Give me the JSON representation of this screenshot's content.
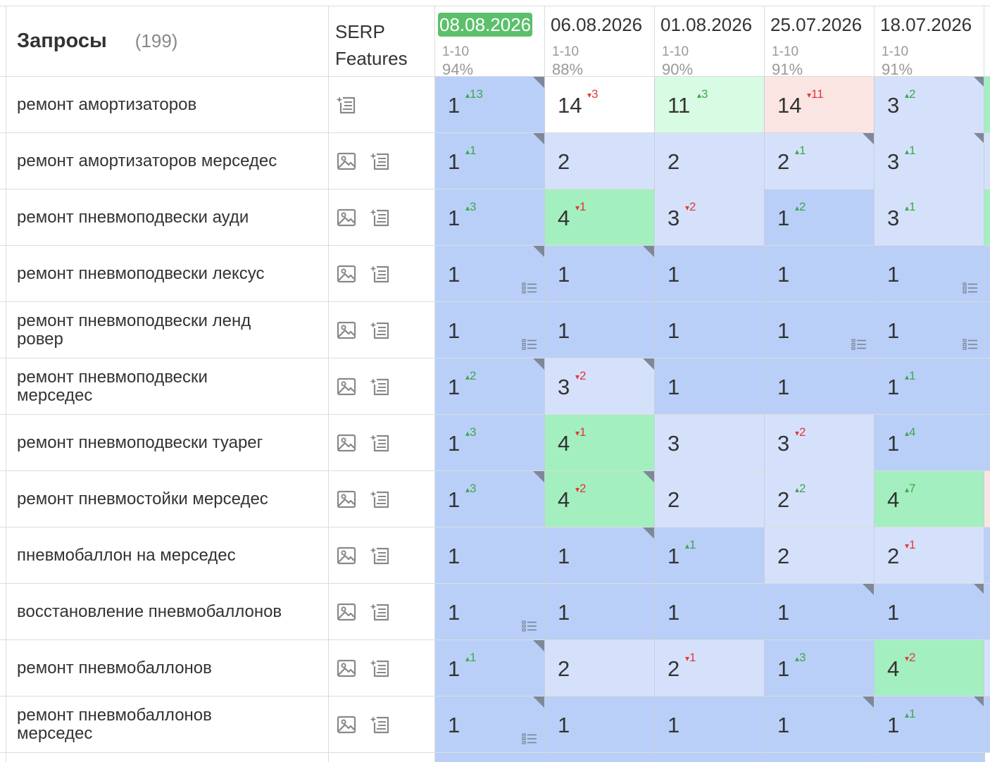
{
  "header": {
    "queries_title": "Запросы",
    "queries_count": "(199)",
    "serp_line1": "SERP",
    "serp_line2": "Features"
  },
  "colors": {
    "top1": "#b9cff8",
    "top3": "#d5e1fb",
    "top10": "#a3efbf",
    "improved_bg": "#d8fbe3",
    "dropped_bg": "#fbe5e3",
    "neutral": "#ffffff",
    "up": "#3fa84b",
    "down": "#e03a3a",
    "current_date_bg": "#5cc06b"
  },
  "dates": [
    {
      "date": "08.08.2026",
      "range": "1-10",
      "pct": "94%",
      "current": true
    },
    {
      "date": "06.08.2026",
      "range": "1-10",
      "pct": "88%",
      "current": false
    },
    {
      "date": "01.08.2026",
      "range": "1-10",
      "pct": "90%",
      "current": false
    },
    {
      "date": "25.07.2026",
      "range": "1-10",
      "pct": "91%",
      "current": false
    },
    {
      "date": "18.07.2026",
      "range": "1-10",
      "pct": "91%",
      "current": false
    }
  ],
  "right_edge": [
    "#a3efbf",
    "#d5e1fb",
    "#a3efbf",
    "#b9cff8",
    "#b9cff8",
    "#b9cff8",
    "#b9cff8",
    "#fbe5e3",
    "#b9cff8",
    "#b9cff8",
    "#d5e1fb",
    "#b9cff8"
  ],
  "rows": [
    {
      "query": "ремонт амортизаторов",
      "serp": [
        "snippet-icon"
      ],
      "cells": [
        {
          "pos": "1",
          "chg": "13",
          "dir": "up",
          "bg": "top1",
          "corner": true
        },
        {
          "pos": "14",
          "chg": "3",
          "dir": "down",
          "bg": "neutral"
        },
        {
          "pos": "11",
          "chg": "3",
          "dir": "up",
          "bg": "improved_bg"
        },
        {
          "pos": "14",
          "chg": "11",
          "dir": "down",
          "bg": "dropped_bg"
        },
        {
          "pos": "3",
          "chg": "2",
          "dir": "up",
          "bg": "top3",
          "corner": true
        }
      ]
    },
    {
      "query": "ремонт амортизаторов мерседес",
      "serp": [
        "image-icon",
        "snippet-icon"
      ],
      "cells": [
        {
          "pos": "1",
          "chg": "1",
          "dir": "up",
          "bg": "top1",
          "corner": true
        },
        {
          "pos": "2",
          "bg": "top3"
        },
        {
          "pos": "2",
          "bg": "top3"
        },
        {
          "pos": "2",
          "chg": "1",
          "dir": "up",
          "bg": "top3",
          "corner": true
        },
        {
          "pos": "3",
          "chg": "1",
          "dir": "up",
          "bg": "top3",
          "corner": true
        }
      ]
    },
    {
      "query": "ремонт пневмоподвески ауди",
      "serp": [
        "image-icon",
        "snippet-icon"
      ],
      "cells": [
        {
          "pos": "1",
          "chg": "3",
          "dir": "up",
          "bg": "top1"
        },
        {
          "pos": "4",
          "chg": "1",
          "dir": "down",
          "bg": "top10"
        },
        {
          "pos": "3",
          "chg": "2",
          "dir": "down",
          "bg": "top3"
        },
        {
          "pos": "1",
          "chg": "2",
          "dir": "up",
          "bg": "top1"
        },
        {
          "pos": "3",
          "chg": "1",
          "dir": "up",
          "bg": "top3"
        }
      ]
    },
    {
      "query": "ремонт пневмоподвески лексус",
      "serp": [
        "image-icon",
        "snippet-icon"
      ],
      "cells": [
        {
          "pos": "1",
          "bg": "top1",
          "corner": true,
          "snippet": true
        },
        {
          "pos": "1",
          "bg": "top1",
          "corner": true
        },
        {
          "pos": "1",
          "bg": "top1"
        },
        {
          "pos": "1",
          "bg": "top1"
        },
        {
          "pos": "1",
          "bg": "top1",
          "snippet": true
        }
      ]
    },
    {
      "query": "ремонт пневмоподвески ленд ровер",
      "serp": [
        "image-icon",
        "snippet-icon"
      ],
      "cells": [
        {
          "pos": "1",
          "bg": "top1",
          "snippet": true
        },
        {
          "pos": "1",
          "bg": "top1"
        },
        {
          "pos": "1",
          "bg": "top1"
        },
        {
          "pos": "1",
          "bg": "top1",
          "snippet": true
        },
        {
          "pos": "1",
          "bg": "top1",
          "snippet": true
        }
      ]
    },
    {
      "query": "ремонт пневмоподвески мерседес",
      "serp": [
        "image-icon",
        "snippet-icon"
      ],
      "cells": [
        {
          "pos": "1",
          "chg": "2",
          "dir": "up",
          "bg": "top1",
          "corner": true
        },
        {
          "pos": "3",
          "chg": "2",
          "dir": "down",
          "bg": "top3",
          "corner": true
        },
        {
          "pos": "1",
          "bg": "top1"
        },
        {
          "pos": "1",
          "bg": "top1"
        },
        {
          "pos": "1",
          "chg": "1",
          "dir": "up",
          "bg": "top1"
        }
      ]
    },
    {
      "query": "ремонт пневмоподвески туарег",
      "serp": [
        "image-icon",
        "snippet-icon"
      ],
      "cells": [
        {
          "pos": "1",
          "chg": "3",
          "dir": "up",
          "bg": "top1"
        },
        {
          "pos": "4",
          "chg": "1",
          "dir": "down",
          "bg": "top10"
        },
        {
          "pos": "3",
          "bg": "top3"
        },
        {
          "pos": "3",
          "chg": "2",
          "dir": "down",
          "bg": "top3"
        },
        {
          "pos": "1",
          "chg": "4",
          "dir": "up",
          "bg": "top1"
        }
      ]
    },
    {
      "query": "ремонт пневмостойки мерседес",
      "serp": [
        "image-icon",
        "snippet-icon"
      ],
      "cells": [
        {
          "pos": "1",
          "chg": "3",
          "dir": "up",
          "bg": "top1",
          "corner": true
        },
        {
          "pos": "4",
          "chg": "2",
          "dir": "down",
          "bg": "top10",
          "corner": true
        },
        {
          "pos": "2",
          "bg": "top3"
        },
        {
          "pos": "2",
          "chg": "2",
          "dir": "up",
          "bg": "top3"
        },
        {
          "pos": "4",
          "chg": "7",
          "dir": "up",
          "bg": "top10"
        }
      ]
    },
    {
      "query": "пневмобаллон на мерседес",
      "serp": [
        "image-icon",
        "snippet-icon"
      ],
      "cells": [
        {
          "pos": "1",
          "bg": "top1"
        },
        {
          "pos": "1",
          "bg": "top1",
          "corner": true
        },
        {
          "pos": "1",
          "chg": "1",
          "dir": "up",
          "bg": "top1"
        },
        {
          "pos": "2",
          "bg": "top3"
        },
        {
          "pos": "2",
          "chg": "1",
          "dir": "down",
          "bg": "top3"
        }
      ]
    },
    {
      "query": "восстановление пневмобаллонов",
      "serp": [
        "image-icon",
        "snippet-icon"
      ],
      "cells": [
        {
          "pos": "1",
          "bg": "top1",
          "snippet": true
        },
        {
          "pos": "1",
          "bg": "top1"
        },
        {
          "pos": "1",
          "bg": "top1"
        },
        {
          "pos": "1",
          "bg": "top1",
          "corner": true
        },
        {
          "pos": "1",
          "bg": "top1",
          "corner": true
        }
      ]
    },
    {
      "query": "ремонт пневмобаллонов",
      "serp": [
        "image-icon",
        "snippet-icon"
      ],
      "cells": [
        {
          "pos": "1",
          "chg": "1",
          "dir": "up",
          "bg": "top1",
          "corner": true
        },
        {
          "pos": "2",
          "bg": "top3"
        },
        {
          "pos": "2",
          "chg": "1",
          "dir": "down",
          "bg": "top3"
        },
        {
          "pos": "1",
          "chg": "3",
          "dir": "up",
          "bg": "top1"
        },
        {
          "pos": "4",
          "chg": "2",
          "dir": "down",
          "bg": "top10"
        }
      ]
    },
    {
      "query": "ремонт пневмобаллонов мерседес",
      "serp": [
        "image-icon",
        "snippet-icon"
      ],
      "cells": [
        {
          "pos": "1",
          "bg": "top1",
          "corner": true,
          "snippet": true
        },
        {
          "pos": "1",
          "bg": "top1"
        },
        {
          "pos": "1",
          "bg": "top1"
        },
        {
          "pos": "1",
          "bg": "top1",
          "corner": true
        },
        {
          "pos": "1",
          "chg": "1",
          "dir": "up",
          "bg": "top1",
          "corner": true
        }
      ]
    }
  ]
}
